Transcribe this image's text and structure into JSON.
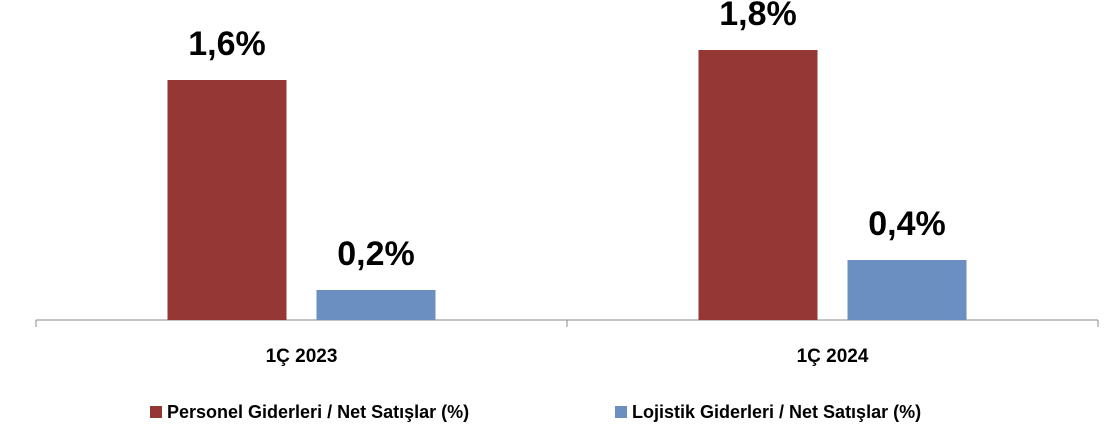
{
  "chart_data": {
    "type": "bar",
    "categories": [
      "1Ç 2023",
      "1Ç 2024"
    ],
    "series": [
      {
        "name": "Personel Giderleri / Net Satışlar (%)",
        "color": "#953735",
        "values": [
          1.6,
          1.8
        ],
        "value_labels": [
          "1,6%",
          "1,8%"
        ]
      },
      {
        "name": "Lojistik Giderleri / Net Satışlar (%)",
        "color": "#6b8fc0",
        "values": [
          0.2,
          0.4
        ],
        "value_labels": [
          "0,2%",
          "0,4%"
        ]
      }
    ],
    "ylim": [
      0,
      2
    ],
    "legend": "bottom"
  }
}
